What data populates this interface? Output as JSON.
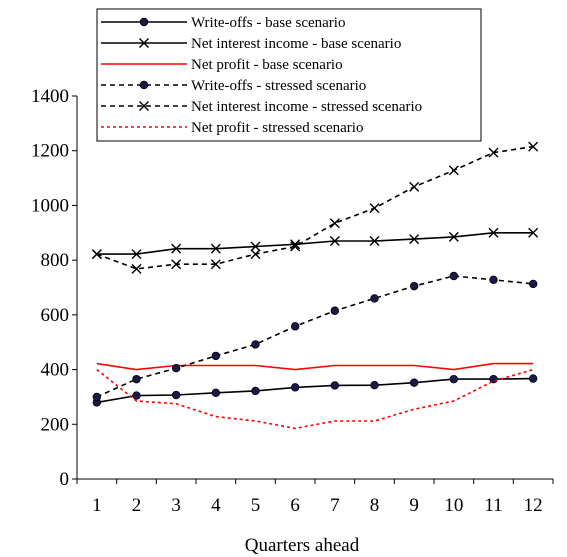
{
  "chart_data": {
    "type": "line",
    "title": "",
    "xlabel": "Quarters ahead",
    "ylabel": "",
    "categories": [
      "1",
      "2",
      "3",
      "4",
      "5",
      "6",
      "7",
      "8",
      "9",
      "10",
      "11",
      "12"
    ],
    "ylim": [
      0,
      1400
    ],
    "yticks": [
      0,
      200,
      400,
      600,
      800,
      1000,
      1200,
      1400
    ],
    "grid": false,
    "legend_position": "top",
    "series": [
      {
        "name": "Write-offs - base scenario",
        "color": "#000000",
        "line_style": "solid",
        "marker": "circle",
        "values": [
          280,
          305,
          307,
          315,
          322,
          335,
          342,
          343,
          352,
          365,
          365,
          367
        ]
      },
      {
        "name": "Net interest income - base scenario",
        "color": "#000000",
        "line_style": "solid",
        "marker": "x",
        "values": [
          822,
          822,
          842,
          842,
          850,
          858,
          870,
          870,
          877,
          885,
          900,
          900
        ]
      },
      {
        "name": "Net profit - base scenario",
        "color": "#ff0000",
        "line_style": "solid",
        "marker": "none",
        "values": [
          422,
          400,
          415,
          415,
          415,
          400,
          415,
          415,
          415,
          400,
          422,
          422
        ]
      },
      {
        "name": "Write-offs - stressed scenario",
        "color": "#000000",
        "line_style": "dashed",
        "marker": "circle",
        "values": [
          300,
          365,
          405,
          450,
          492,
          558,
          615,
          660,
          705,
          742,
          728,
          713
        ]
      },
      {
        "name": "Net interest income - stressed scenario",
        "color": "#000000",
        "line_style": "dashed",
        "marker": "x",
        "values": [
          822,
          768,
          785,
          785,
          822,
          850,
          935,
          990,
          1068,
          1128,
          1193,
          1215
        ]
      },
      {
        "name": "Net profit - stressed scenario",
        "color": "#ff0000",
        "line_style": "dashed",
        "marker": "none",
        "values": [
          400,
          285,
          275,
          228,
          212,
          185,
          212,
          212,
          255,
          285,
          358,
          400
        ]
      }
    ]
  }
}
